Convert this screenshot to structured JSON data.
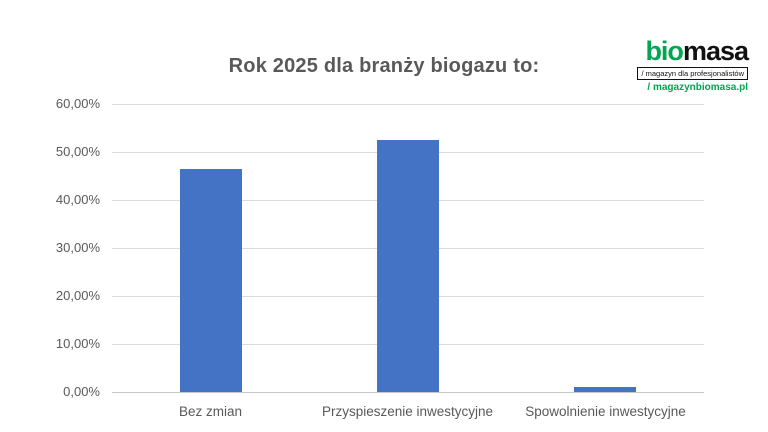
{
  "logo": {
    "bio": "bio",
    "masa": "masa",
    "tagline": "/ magazyn dla profesjonalistów",
    "url": "/ magazynbiomasa.pl",
    "green": "#00a651",
    "black": "#111111"
  },
  "chart_data": {
    "type": "bar",
    "title": "Rok 2025 dla branży biogazu to:",
    "categories": [
      "Bez zmian",
      "Przyspieszenie inwestycyjne",
      "Spowolnienie inwestycyjne"
    ],
    "values": [
      46.5,
      52.5,
      1.0
    ],
    "value_format": "percent-pl",
    "xlabel": "",
    "ylabel": "",
    "ylim": [
      0,
      60
    ],
    "yticks": [
      0,
      10,
      20,
      30,
      40,
      50,
      60
    ],
    "ytick_labels": [
      "0,00%",
      "10,00%",
      "20,00%",
      "30,00%",
      "40,00%",
      "50,00%",
      "60,00%"
    ],
    "grid": "horizontal",
    "legend": "none",
    "bar_color": "#4472c4",
    "gridline_color": "#dcdcdc",
    "axis_line_color": "#c6c6c6",
    "axis_text_color": "#595959",
    "title_color": "#595959"
  }
}
